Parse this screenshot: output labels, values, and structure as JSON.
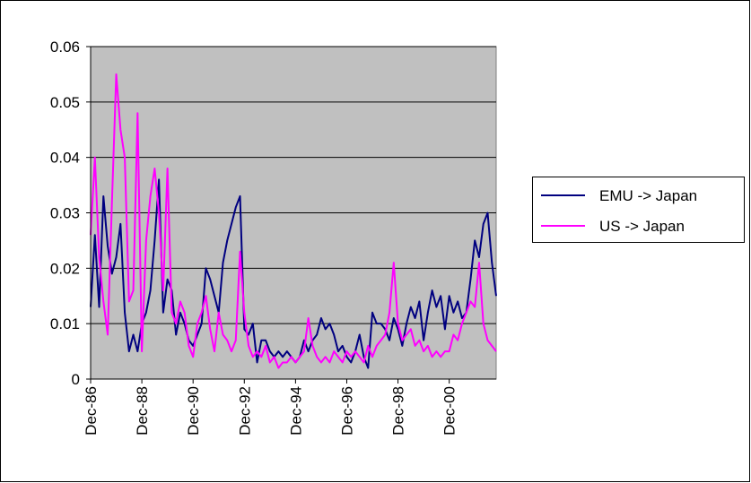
{
  "chart_data": {
    "type": "line",
    "categories": [
      "Dec-86",
      null,
      null,
      null,
      null,
      null,
      null,
      null,
      null,
      null,
      null,
      null,
      "Dec-88",
      null,
      null,
      null,
      null,
      null,
      null,
      null,
      null,
      null,
      null,
      null,
      "Dec-90",
      null,
      null,
      null,
      null,
      null,
      null,
      null,
      null,
      null,
      null,
      null,
      "Dec-92",
      null,
      null,
      null,
      null,
      null,
      null,
      null,
      null,
      null,
      null,
      null,
      "Dec-94",
      null,
      null,
      null,
      null,
      null,
      null,
      null,
      null,
      null,
      null,
      null,
      "Dec-96",
      null,
      null,
      null,
      null,
      null,
      null,
      null,
      null,
      null,
      null,
      null,
      "Dec-98",
      null,
      null,
      null,
      null,
      null,
      null,
      null,
      null,
      null,
      null,
      null,
      "Dec-00",
      null,
      null,
      null,
      null,
      null,
      null,
      null,
      null,
      null,
      null,
      null
    ],
    "series": [
      {
        "name": "EMU -> Japan",
        "color": "#000080",
        "values": [
          0.013,
          0.026,
          0.013,
          0.033,
          0.024,
          0.019,
          0.022,
          0.028,
          0.012,
          0.005,
          0.008,
          0.005,
          0.01,
          0.012,
          0.016,
          0.025,
          0.036,
          0.012,
          0.018,
          0.016,
          0.008,
          0.012,
          0.01,
          0.007,
          0.006,
          0.008,
          0.01,
          0.02,
          0.018,
          0.015,
          0.012,
          0.021,
          0.025,
          0.028,
          0.031,
          0.033,
          0.009,
          0.008,
          0.01,
          0.003,
          0.007,
          0.007,
          0.005,
          0.004,
          0.005,
          0.004,
          0.005,
          0.004,
          0.003,
          0.004,
          0.007,
          0.005,
          0.007,
          0.008,
          0.011,
          0.009,
          0.01,
          0.008,
          0.005,
          0.006,
          0.004,
          0.003,
          0.005,
          0.008,
          0.004,
          0.002,
          0.012,
          0.01,
          0.01,
          0.009,
          0.007,
          0.011,
          0.009,
          0.006,
          0.01,
          0.013,
          0.011,
          0.014,
          0.007,
          0.012,
          0.016,
          0.013,
          0.015,
          0.009,
          0.015,
          0.012,
          0.014,
          0.011,
          0.012,
          0.018,
          0.025,
          0.022,
          0.028,
          0.03,
          0.021,
          0.015
        ]
      },
      {
        "name": "US -> Japan",
        "color": "#ff00ff",
        "values": [
          0.026,
          0.04,
          0.022,
          0.014,
          0.008,
          0.032,
          0.055,
          0.045,
          0.04,
          0.014,
          0.016,
          0.048,
          0.005,
          0.025,
          0.033,
          0.038,
          0.03,
          0.016,
          0.038,
          0.012,
          0.01,
          0.014,
          0.012,
          0.006,
          0.004,
          0.01,
          0.012,
          0.015,
          0.009,
          0.005,
          0.012,
          0.008,
          0.007,
          0.005,
          0.007,
          0.023,
          0.012,
          0.006,
          0.004,
          0.005,
          0.004,
          0.006,
          0.003,
          0.004,
          0.002,
          0.003,
          0.003,
          0.004,
          0.003,
          0.004,
          0.005,
          0.011,
          0.006,
          0.004,
          0.003,
          0.004,
          0.003,
          0.005,
          0.004,
          0.003,
          0.005,
          0.004,
          0.005,
          0.004,
          0.003,
          0.006,
          0.004,
          0.006,
          0.007,
          0.008,
          0.012,
          0.021,
          0.01,
          0.007,
          0.008,
          0.009,
          0.006,
          0.007,
          0.005,
          0.006,
          0.004,
          0.005,
          0.004,
          0.005,
          0.005,
          0.008,
          0.007,
          0.01,
          0.012,
          0.014,
          0.013,
          0.021,
          0.01,
          0.007,
          0.006,
          0.005
        ]
      }
    ],
    "ylim": [
      0,
      0.06
    ],
    "yticks": [
      0,
      0.01,
      0.02,
      0.03,
      0.04,
      0.05,
      0.06
    ],
    "grid": true,
    "legend": "right"
  }
}
